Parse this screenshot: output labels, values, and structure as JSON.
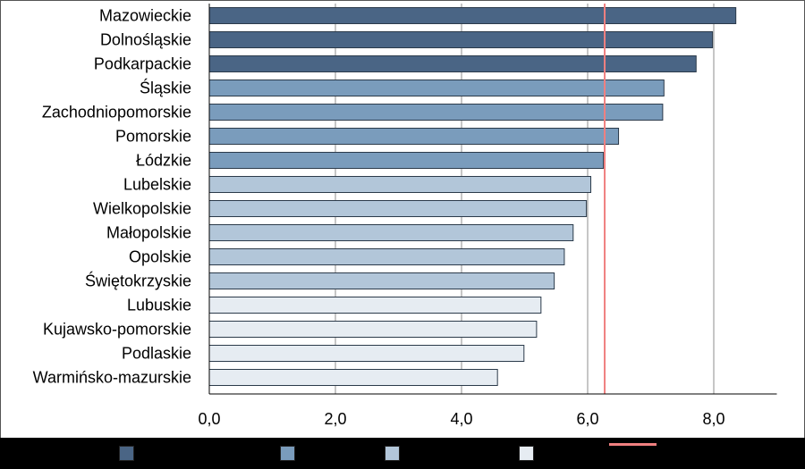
{
  "chart_data": {
    "type": "bar",
    "orientation": "horizontal",
    "title": "",
    "xlabel": "",
    "ylabel": "",
    "categories": [
      "Mazowieckie",
      "Dolnośląskie",
      "Podkarpackie",
      "Śląskie",
      "Zachodniopomorskie",
      "Pomorskie",
      "Łódzkie",
      "Lubelskie",
      "Wielkopolskie",
      "Małopolskie",
      "Opolskie",
      "Świętokrzyskie",
      "Lubuskie",
      "Kujawsko-pomorskie",
      "Podlaskie",
      "Warmińsko-mazurskie"
    ],
    "values": [
      8.35,
      7.98,
      7.72,
      7.21,
      7.19,
      6.49,
      6.25,
      6.05,
      5.98,
      5.77,
      5.63,
      5.47,
      5.26,
      5.19,
      4.99,
      4.57
    ],
    "groups": [
      1,
      1,
      1,
      2,
      2,
      2,
      2,
      3,
      3,
      3,
      3,
      3,
      4,
      4,
      4,
      4
    ],
    "group_colors": [
      "#4a6585",
      "#7a9cbc",
      "#b2c6d9",
      "#e6ecf2"
    ],
    "reference_line": {
      "value": 6.27,
      "color": "#f08080"
    },
    "xlim": [
      0,
      9
    ],
    "x_ticks": [
      "0,0",
      "2,0",
      "4,0",
      "6,0",
      "8,0"
    ],
    "x_tick_values": [
      0,
      2,
      4,
      6,
      8
    ],
    "grid": "vertical",
    "legend": {
      "placement": "bottom",
      "entries": [
        {
          "color": "#4a6585",
          "kind": "box"
        },
        {
          "color": "#7a9cbc",
          "kind": "box"
        },
        {
          "color": "#b2c6d9",
          "kind": "box"
        },
        {
          "color": "#e6ecf2",
          "kind": "box"
        },
        {
          "color": "#f08080",
          "kind": "line"
        }
      ]
    }
  }
}
